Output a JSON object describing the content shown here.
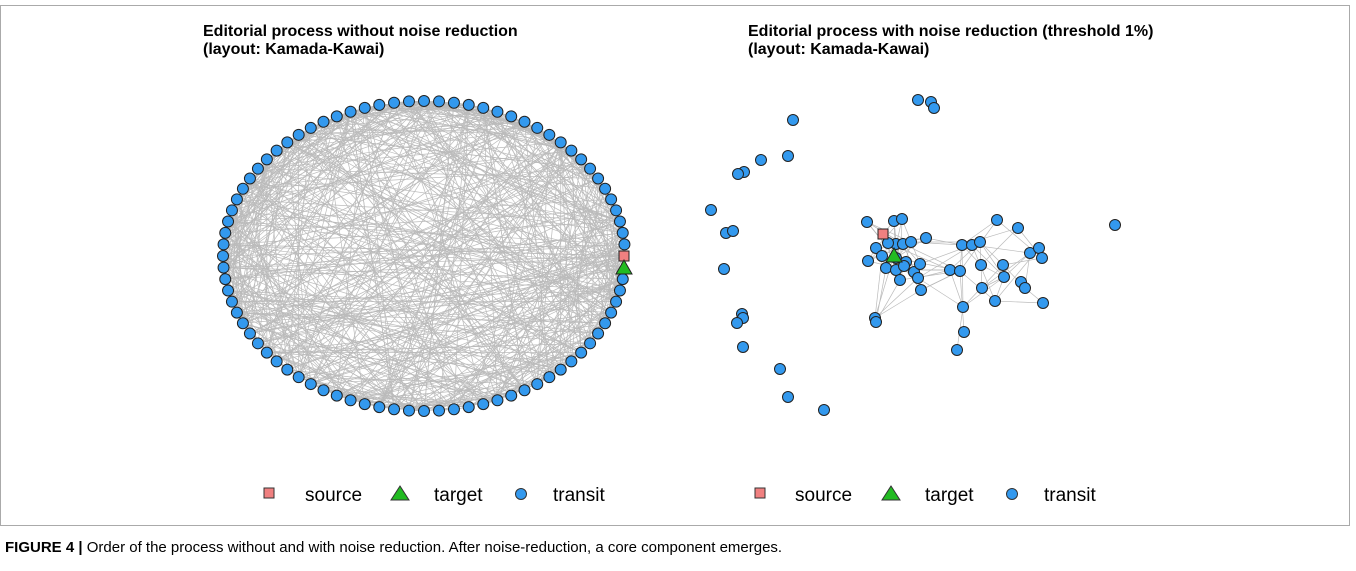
{
  "figure": {
    "panels": [
      {
        "title_lines": [
          "Editorial process without noise reduction",
          "(layout: Kamada-Kawai)"
        ],
        "legend": [
          "source",
          "target",
          "transit"
        ]
      },
      {
        "title_lines": [
          "Editorial process with noise reduction (threshold 1%)",
          "(layout: Kamada-Kawai)"
        ],
        "legend": [
          "source",
          "target",
          "transit"
        ]
      }
    ],
    "caption": {
      "label": "FIGURE 4 |",
      "text": "Order of the process without and with noise reduction. After noise-reduction, a core component emerges."
    }
  }
}
